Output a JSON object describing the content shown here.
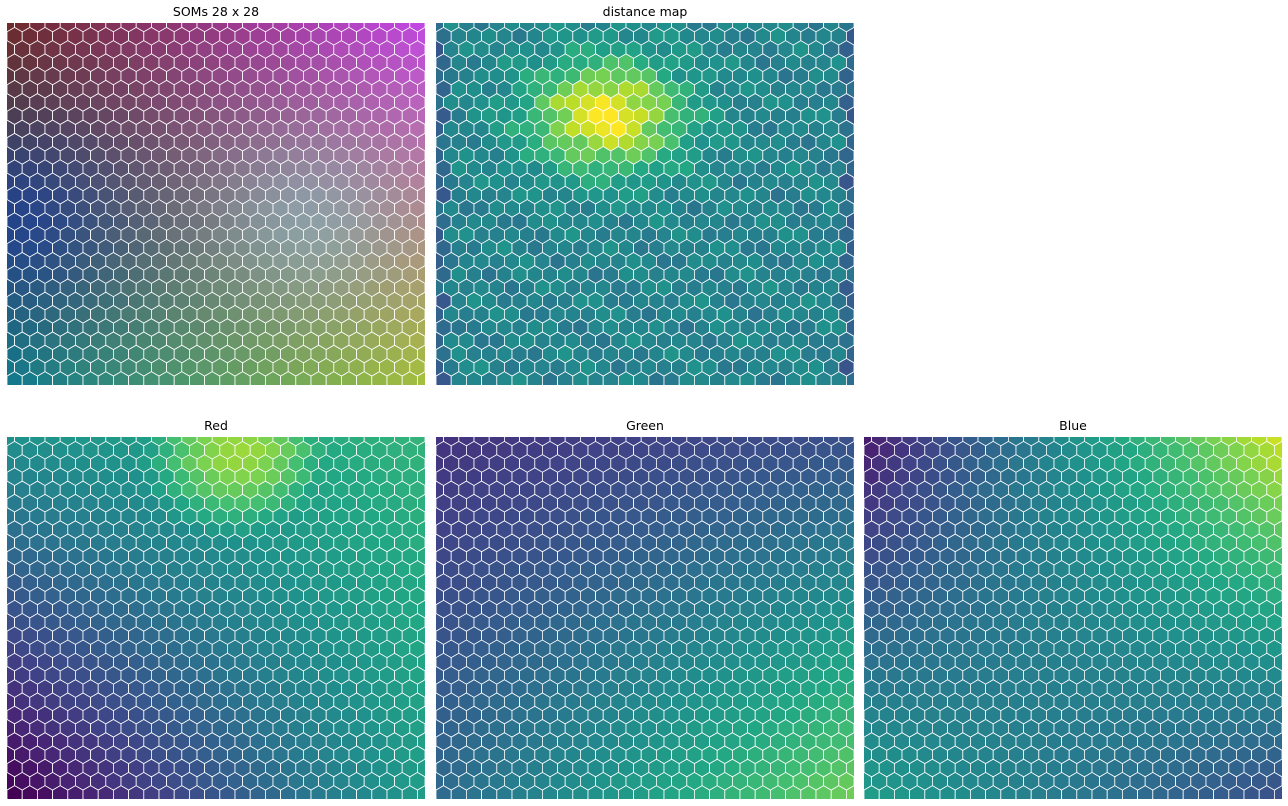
{
  "chart_data": [
    {
      "type": "heatmap",
      "title": "SOMs 28 x 28",
      "grid": [
        28,
        28
      ],
      "cell_shape": "hexagon",
      "color_mode": "rgb",
      "corner_colors": {
        "top_left": "#6e2a2c",
        "top_right": "#c048e0",
        "bottom_left": "#127a8c",
        "bottom_right": "#a4be3e",
        "center": "#8bbcc6",
        "mid_left": "#1a3c9c"
      },
      "axes": "off"
    },
    {
      "type": "heatmap",
      "title": "distance map",
      "grid": [
        28,
        28
      ],
      "cell_shape": "hexagon",
      "colormap": "viridis",
      "value_range": [
        0,
        1
      ],
      "peak": {
        "col": 11,
        "row": 7,
        "value": 1.0
      },
      "baseline": 0.45,
      "axes": "off"
    },
    {
      "type": "heatmap",
      "title": "Red",
      "grid": [
        28,
        28
      ],
      "cell_shape": "hexagon",
      "colormap": "viridis",
      "value_range": [
        0,
        1
      ],
      "corner_values": {
        "top_left": 0.5,
        "top_right": 0.65,
        "bottom_left": 0.0,
        "bottom_right": 0.55
      },
      "peak": {
        "col": 15,
        "row": 1,
        "value": 0.85
      },
      "axes": "off"
    },
    {
      "type": "heatmap",
      "title": "Green",
      "grid": [
        28,
        28
      ],
      "cell_shape": "hexagon",
      "colormap": "viridis",
      "value_range": [
        0,
        1
      ],
      "corner_values": {
        "top_left": 0.15,
        "top_right": 0.25,
        "bottom_left": 0.35,
        "bottom_right": 0.78
      },
      "axes": "off"
    },
    {
      "type": "heatmap",
      "title": "Blue",
      "grid": [
        28,
        28
      ],
      "cell_shape": "hexagon",
      "colormap": "viridis",
      "value_range": [
        0,
        1
      ],
      "corner_values": {
        "top_left": 0.08,
        "top_right": 0.92,
        "bottom_left": 0.55,
        "bottom_right": 0.25
      },
      "axes": "off"
    }
  ]
}
